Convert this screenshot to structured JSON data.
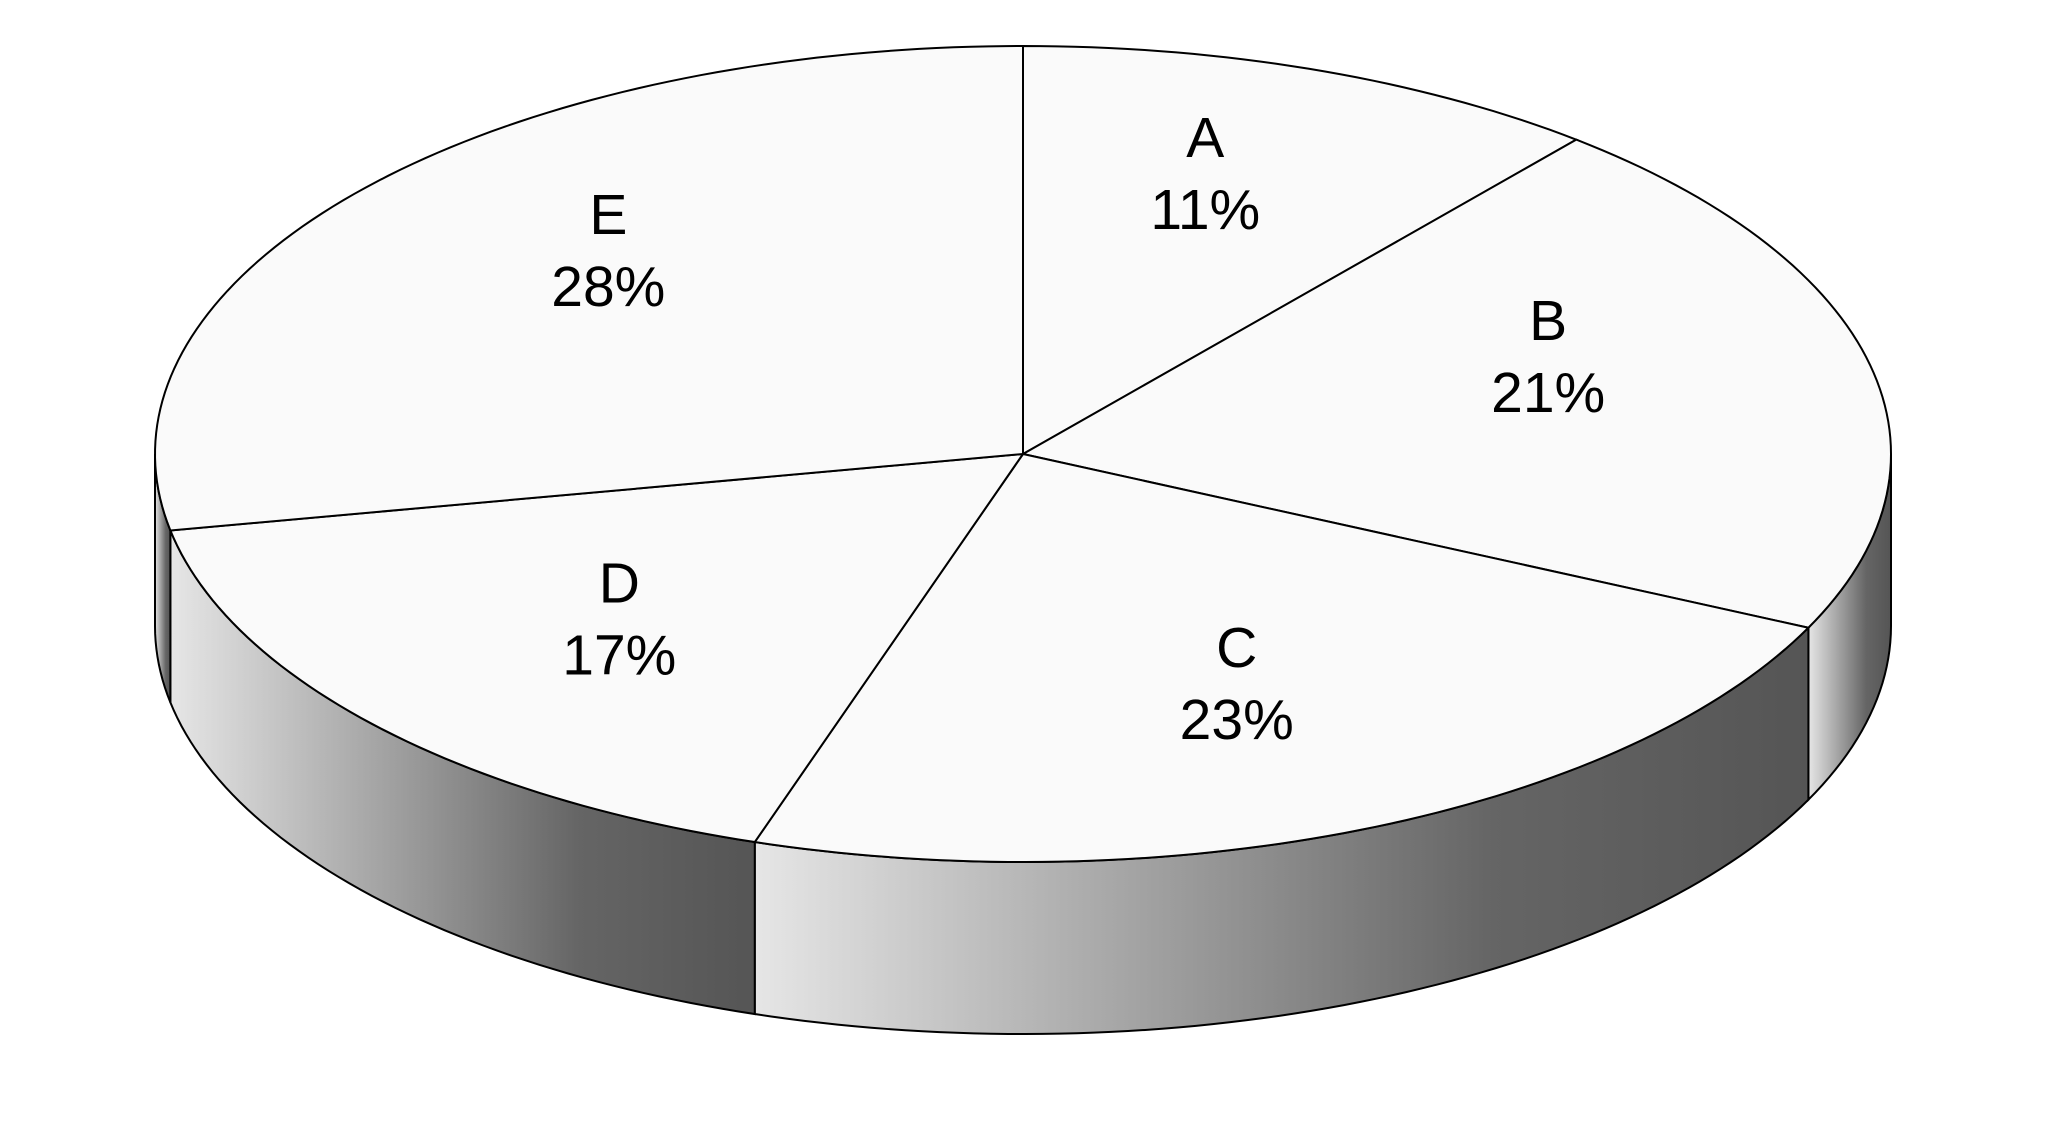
{
  "chart_data": {
    "type": "pie3d",
    "categories": [
      "A",
      "B",
      "C",
      "D",
      "E"
    ],
    "values": [
      11,
      21,
      23,
      17,
      28
    ],
    "value_labels": [
      "11%",
      "21%",
      "23%",
      "17%",
      "28%"
    ],
    "color": "#fafafa"
  }
}
